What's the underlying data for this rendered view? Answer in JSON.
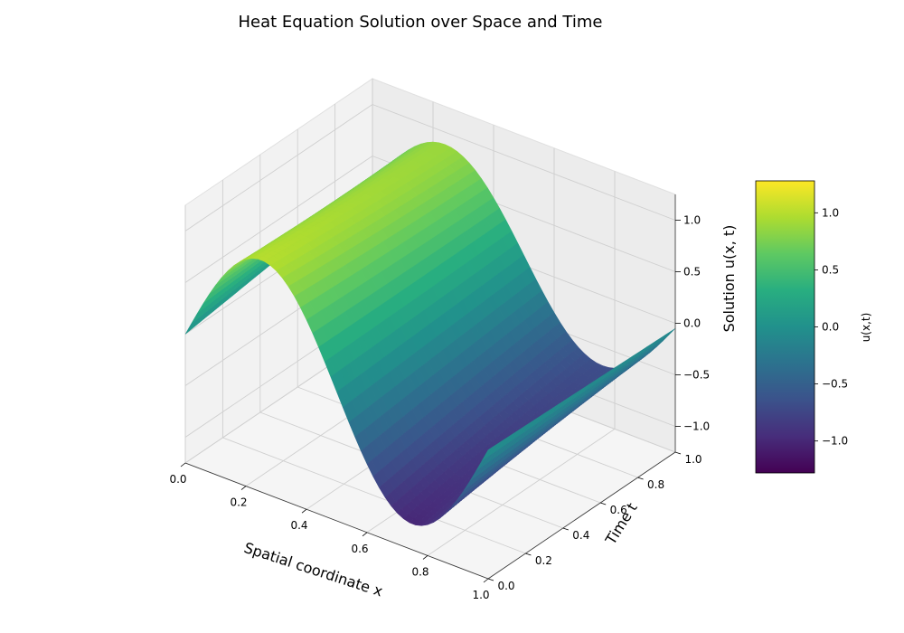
{
  "chart_data": {
    "type": "surface3d",
    "title": "Heat Equation Solution over Space and Time",
    "xlabel": "Spatial coordinate x",
    "ylabel": "Time t",
    "zlabel": "Solution u(x, t)",
    "colorbar_label": "u(x,t)",
    "colormap": "viridis",
    "xlim": [
      0.0,
      1.0
    ],
    "ylim": [
      0.0,
      1.0
    ],
    "zlim": [
      -1.25,
      1.25
    ],
    "xticks": [
      "0.0",
      "0.2",
      "0.4",
      "0.6",
      "0.8",
      "1.0"
    ],
    "yticks": [
      "0.0",
      "0.2",
      "0.4",
      "0.6",
      "0.8",
      "1.0"
    ],
    "zticks": [
      "−1.0",
      "−0.5",
      "0.0",
      "0.5",
      "1.0"
    ],
    "colorbar_ticks": [
      "−1.0",
      "−0.5",
      "0.0",
      "0.5",
      "1.0"
    ],
    "colorbar_range": [
      -1.28,
      1.28
    ],
    "grid": true,
    "samples": {
      "x": [
        0.0,
        0.2,
        0.4,
        0.6,
        0.8,
        1.0
      ],
      "u_at_t0": [
        0.0,
        0.95,
        0.59,
        -0.59,
        -0.95,
        0.0
      ],
      "u_at_t1": [
        0.35,
        0.85,
        0.3,
        -0.35,
        -0.7,
        0.2
      ]
    }
  }
}
